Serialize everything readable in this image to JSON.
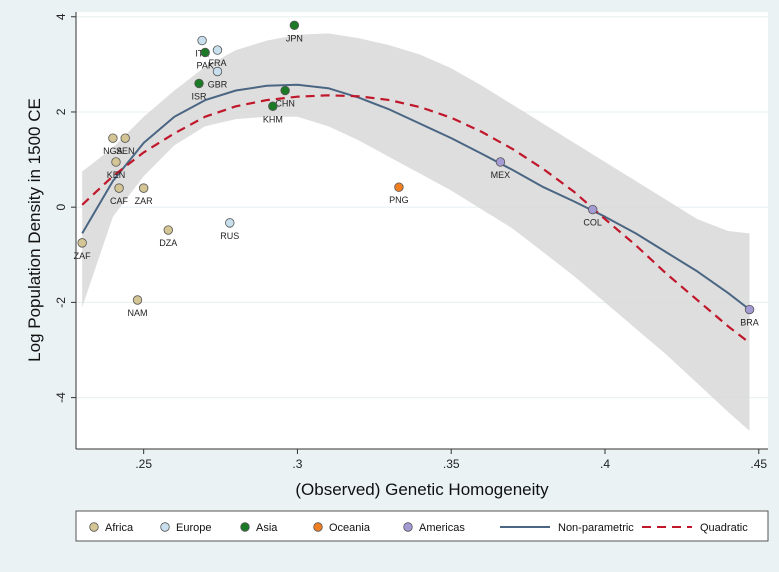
{
  "chart_data": {
    "type": "scatter",
    "xlabel": "(Observed) Genetic Homogeneity",
    "ylabel": "Log Population Density in 1500 CE",
    "xlim": [
      0.228,
      0.453
    ],
    "ylim": [
      -5.08,
      4.1
    ],
    "xticks": [
      0.25,
      0.3,
      0.35,
      0.4,
      0.45
    ],
    "xtick_labels": [
      ".25",
      ".3",
      ".35",
      ".4",
      ".45"
    ],
    "yticks": [
      -4,
      -2,
      0,
      2,
      4
    ],
    "ytick_labels": [
      "-4",
      "-2",
      "0",
      "2",
      "4"
    ],
    "grid": "horizontal",
    "legend_position": "bottom",
    "colors": {
      "Africa": "#d4c595",
      "Europe": "#c8e0ee",
      "Asia": "#1c7a26",
      "Oceania": "#f07f22",
      "Americas": "#a59bd4",
      "Non-parametric": "#4a6683",
      "Quadratic": "#c0172b",
      "band": "#d6d6d6"
    },
    "legend": [
      {
        "label": "Africa",
        "kind": "marker",
        "group": "Africa"
      },
      {
        "label": "Europe",
        "kind": "marker",
        "group": "Europe"
      },
      {
        "label": "Asia",
        "kind": "marker",
        "group": "Asia"
      },
      {
        "label": "Oceania",
        "kind": "marker",
        "group": "Oceania"
      },
      {
        "label": "Americas",
        "kind": "marker",
        "group": "Americas"
      },
      {
        "label": "Non-parametric",
        "kind": "solid",
        "group": "Non-parametric"
      },
      {
        "label": "Quadratic",
        "kind": "dashed",
        "group": "Quadratic"
      }
    ],
    "points": [
      {
        "label": "ZAF",
        "x": 0.23,
        "y": -0.75,
        "group": "Africa",
        "pos": "below"
      },
      {
        "label": "NGA",
        "x": 0.24,
        "y": 1.45,
        "group": "Africa",
        "pos": "below"
      },
      {
        "label": "SEN",
        "x": 0.244,
        "y": 1.45,
        "group": "Africa",
        "pos": "below"
      },
      {
        "label": "KEN",
        "x": 0.241,
        "y": 0.95,
        "group": "Africa",
        "pos": "below"
      },
      {
        "label": "CAF",
        "x": 0.242,
        "y": 0.4,
        "group": "Africa",
        "pos": "below"
      },
      {
        "label": "ZAR",
        "x": 0.25,
        "y": 0.4,
        "group": "Africa",
        "pos": "below"
      },
      {
        "label": "DZA",
        "x": 0.258,
        "y": -0.48,
        "group": "Africa",
        "pos": "below"
      },
      {
        "label": "NAM",
        "x": 0.248,
        "y": -1.95,
        "group": "Africa",
        "pos": "below"
      },
      {
        "label": "ITA",
        "x": 0.269,
        "y": 3.5,
        "group": "Europe",
        "pos": "below"
      },
      {
        "label": "FRA",
        "x": 0.274,
        "y": 3.3,
        "group": "Europe",
        "pos": "below"
      },
      {
        "label": "GBR",
        "x": 0.274,
        "y": 2.85,
        "group": "Europe",
        "pos": "below"
      },
      {
        "label": "RUS",
        "x": 0.278,
        "y": -0.33,
        "group": "Europe",
        "pos": "below"
      },
      {
        "label": "PAK",
        "x": 0.27,
        "y": 3.25,
        "group": "Asia",
        "pos": "below"
      },
      {
        "label": "ISR",
        "x": 0.268,
        "y": 2.6,
        "group": "Asia",
        "pos": "below"
      },
      {
        "label": "JPN",
        "x": 0.299,
        "y": 3.82,
        "group": "Asia",
        "pos": "below"
      },
      {
        "label": "CHN",
        "x": 0.296,
        "y": 2.45,
        "group": "Asia",
        "pos": "below"
      },
      {
        "label": "KHM",
        "x": 0.292,
        "y": 2.12,
        "group": "Asia",
        "pos": "below"
      },
      {
        "label": "PNG",
        "x": 0.333,
        "y": 0.42,
        "group": "Oceania",
        "pos": "below"
      },
      {
        "label": "MEX",
        "x": 0.366,
        "y": 0.95,
        "group": "Americas",
        "pos": "below"
      },
      {
        "label": "COL",
        "x": 0.396,
        "y": -0.05,
        "group": "Americas",
        "pos": "below"
      },
      {
        "label": "BRA",
        "x": 0.447,
        "y": -2.15,
        "group": "Americas",
        "pos": "below"
      }
    ],
    "series": [
      {
        "name": "Non-parametric",
        "style": "solid",
        "x": [
          0.23,
          0.24,
          0.25,
          0.26,
          0.27,
          0.28,
          0.29,
          0.3,
          0.31,
          0.32,
          0.33,
          0.34,
          0.35,
          0.36,
          0.37,
          0.38,
          0.39,
          0.4,
          0.41,
          0.42,
          0.43,
          0.44,
          0.447
        ],
        "y": [
          -0.55,
          0.55,
          1.35,
          1.9,
          2.25,
          2.45,
          2.55,
          2.57,
          2.5,
          2.3,
          2.05,
          1.75,
          1.45,
          1.12,
          0.78,
          0.42,
          0.12,
          -0.2,
          -0.55,
          -0.95,
          -1.35,
          -1.8,
          -2.15
        ]
      },
      {
        "name": "Quadratic",
        "style": "dashed",
        "x": [
          0.23,
          0.24,
          0.25,
          0.26,
          0.27,
          0.28,
          0.29,
          0.3,
          0.31,
          0.32,
          0.33,
          0.34,
          0.35,
          0.36,
          0.37,
          0.38,
          0.39,
          0.4,
          0.41,
          0.42,
          0.43,
          0.44,
          0.447
        ],
        "y": [
          0.05,
          0.65,
          1.15,
          1.55,
          1.9,
          2.12,
          2.25,
          2.32,
          2.35,
          2.33,
          2.25,
          2.1,
          1.88,
          1.58,
          1.22,
          0.8,
          0.32,
          -0.25,
          -0.8,
          -1.4,
          -1.95,
          -2.5,
          -2.85
        ]
      }
    ],
    "band": {
      "x": [
        0.23,
        0.24,
        0.25,
        0.26,
        0.27,
        0.28,
        0.29,
        0.3,
        0.31,
        0.32,
        0.33,
        0.34,
        0.35,
        0.36,
        0.37,
        0.38,
        0.39,
        0.4,
        0.41,
        0.42,
        0.43,
        0.44,
        0.447
      ],
      "upper": [
        0.75,
        1.25,
        1.9,
        2.45,
        2.95,
        3.3,
        3.5,
        3.62,
        3.65,
        3.55,
        3.4,
        3.2,
        2.92,
        2.55,
        2.15,
        1.75,
        1.35,
        0.95,
        0.55,
        0.15,
        -0.25,
        -0.5,
        -0.55
      ],
      "lower": [
        -2.1,
        -0.2,
        0.65,
        1.3,
        1.7,
        1.85,
        1.9,
        1.9,
        1.7,
        1.4,
        1.05,
        0.7,
        0.35,
        -0.05,
        -0.45,
        -0.95,
        -1.45,
        -2.0,
        -2.55,
        -3.1,
        -3.7,
        -4.3,
        -4.7
      ]
    }
  }
}
